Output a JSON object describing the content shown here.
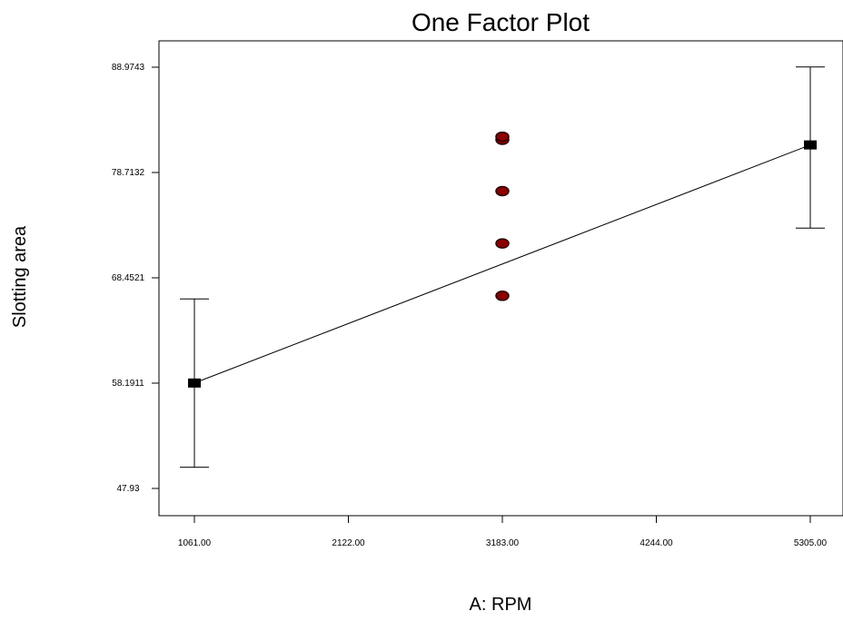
{
  "chart_data": {
    "type": "scatter",
    "title": "One Factor Plot",
    "xlabel": "A: RPM",
    "ylabel": "Slotting area",
    "xlim": [
      1061.0,
      5305.0
    ],
    "ylim": [
      47.93,
      88.9743
    ],
    "x_ticks": [
      "1061.00",
      "2122.00",
      "3183.00",
      "4244.00",
      "5305.00"
    ],
    "y_ticks": [
      "47.93",
      "58.1911",
      "68.4521",
      "78.7132",
      "88.9743"
    ],
    "grid": false,
    "legend": "none",
    "colors": {
      "line": "#000000",
      "mean_marker": "#000000",
      "design_point_fill": "#8b0000",
      "design_point_edge": "#2a0000"
    },
    "fit_line": {
      "x": [
        1061.0,
        5305.0
      ],
      "y": [
        58.2,
        81.4
      ]
    },
    "mean_points": [
      {
        "x": 1061.0,
        "y": 58.2,
        "ci_low": 50.0,
        "ci_high": 66.4
      },
      {
        "x": 5305.0,
        "y": 81.4,
        "ci_low": 73.3,
        "ci_high": 89.0
      }
    ],
    "design_points": [
      {
        "x": 3183.0,
        "y": 81.9
      },
      {
        "x": 3183.0,
        "y": 82.2
      },
      {
        "x": 3183.0,
        "y": 76.9
      },
      {
        "x": 3183.0,
        "y": 71.8
      },
      {
        "x": 3183.0,
        "y": 66.7
      }
    ]
  }
}
